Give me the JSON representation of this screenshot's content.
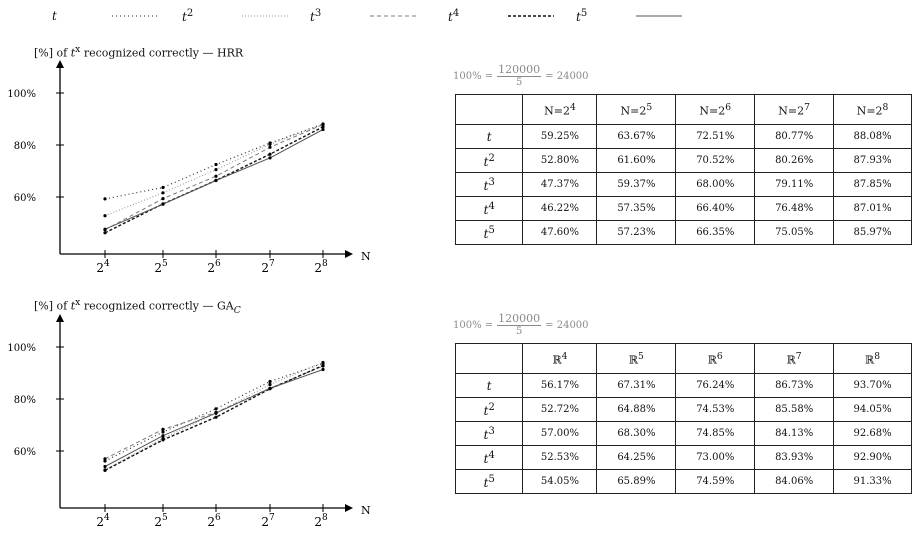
{
  "legend": [
    {
      "label": "t",
      "sup": "",
      "style": "dotted-sparse"
    },
    {
      "label": "t",
      "sup": "2",
      "style": "dotted-light"
    },
    {
      "label": "t",
      "sup": "3",
      "style": "dashed-light"
    },
    {
      "label": "t",
      "sup": "4",
      "style": "dashed-dark"
    },
    {
      "label": "t",
      "sup": "5",
      "style": "solid"
    }
  ],
  "colors": {
    "t1": "#222222",
    "t2": "#9a9a9a",
    "t3": "#7a7a7a",
    "t4": "#111111",
    "t5": "#555555",
    "caption_gray": "#8a8a8a"
  },
  "top": {
    "title_prefix": "[%] of ",
    "title_var": "t",
    "title_sup": "x",
    "title_suffix": " recognized correctly — HRR",
    "eq_left": "100% = ",
    "eq_num": "120000",
    "eq_den": "5",
    "eq_right": " = 24000",
    "table_corner": "",
    "table_headers": [
      {
        "base": "N=2",
        "sup": "4"
      },
      {
        "base": "N=2",
        "sup": "5"
      },
      {
        "base": "N=2",
        "sup": "6"
      },
      {
        "base": "N=2",
        "sup": "7"
      },
      {
        "base": "N=2",
        "sup": "8"
      }
    ],
    "table_rows": [
      {
        "var": "t",
        "sup": "",
        "cells": [
          "59.25%",
          "63.67%",
          "72.51%",
          "80.77%",
          "88.08%"
        ]
      },
      {
        "var": "t",
        "sup": "2",
        "cells": [
          "52.80%",
          "61.60%",
          "70.52%",
          "80.26%",
          "87.93%"
        ]
      },
      {
        "var": "t",
        "sup": "3",
        "cells": [
          "47.37%",
          "59.37%",
          "68.00%",
          "79.11%",
          "87.85%"
        ]
      },
      {
        "var": "t",
        "sup": "4",
        "cells": [
          "46.22%",
          "57.35%",
          "66.40%",
          "76.48%",
          "87.01%"
        ]
      },
      {
        "var": "t",
        "sup": "5",
        "cells": [
          "47.60%",
          "57.23%",
          "66.35%",
          "75.05%",
          "85.97%"
        ]
      }
    ]
  },
  "bottom": {
    "title_prefix": "[%] of ",
    "title_var": "t",
    "title_sup": "x",
    "title_suffix": " recognized correctly — GA",
    "title_sub": "C",
    "eq_left": "100% = ",
    "eq_num": "120000",
    "eq_den": "5",
    "eq_right": " = 24000",
    "table_corner": "",
    "table_headers": [
      {
        "base": "ℝ",
        "sup": "4"
      },
      {
        "base": "ℝ",
        "sup": "5"
      },
      {
        "base": "ℝ",
        "sup": "6"
      },
      {
        "base": "ℝ",
        "sup": "7"
      },
      {
        "base": "ℝ",
        "sup": "8"
      }
    ],
    "table_rows": [
      {
        "var": "t",
        "sup": "",
        "cells": [
          "56.17%",
          "67.31%",
          "76.24%",
          "86.73%",
          "93.70%"
        ]
      },
      {
        "var": "t",
        "sup": "2",
        "cells": [
          "52.72%",
          "64.88%",
          "74.53%",
          "85.58%",
          "94.05%"
        ]
      },
      {
        "var": "t",
        "sup": "3",
        "cells": [
          "57.00%",
          "68.30%",
          "74.85%",
          "84.13%",
          "92.68%"
        ]
      },
      {
        "var": "t",
        "sup": "4",
        "cells": [
          "52.53%",
          "64.25%",
          "73.00%",
          "83.93%",
          "92.90%"
        ]
      },
      {
        "var": "t",
        "sup": "5",
        "cells": [
          "54.05%",
          "65.89%",
          "74.59%",
          "84.06%",
          "91.33%"
        ]
      }
    ]
  },
  "chart_data": [
    {
      "type": "line",
      "title": "[%] of t^x recognized correctly — HRR",
      "x": [
        "2^4",
        "2^5",
        "2^6",
        "2^7",
        "2^8"
      ],
      "x_base": "2",
      "x_sups": [
        "4",
        "5",
        "6",
        "7",
        "8"
      ],
      "xlabel": "N",
      "y_ticks": [
        "60%",
        "80%",
        "100%"
      ],
      "ylim": [
        45,
        105
      ],
      "series": [
        {
          "name": "t",
          "values": [
            59.25,
            63.67,
            72.51,
            80.77,
            88.08
          ]
        },
        {
          "name": "t^2",
          "values": [
            52.8,
            61.6,
            70.52,
            80.26,
            87.93
          ]
        },
        {
          "name": "t^3",
          "values": [
            47.37,
            59.37,
            68.0,
            79.11,
            87.85
          ]
        },
        {
          "name": "t^4",
          "values": [
            46.22,
            57.35,
            66.4,
            76.48,
            87.01
          ]
        },
        {
          "name": "t^5",
          "values": [
            47.6,
            57.23,
            66.35,
            75.05,
            85.97
          ]
        }
      ]
    },
    {
      "type": "line",
      "title": "[%] of t^x recognized correctly — GA_C",
      "x": [
        "2^4",
        "2^5",
        "2^6",
        "2^7",
        "2^8"
      ],
      "x_base": "2",
      "x_sups": [
        "4",
        "5",
        "6",
        "7",
        "8"
      ],
      "xlabel": "N",
      "y_ticks": [
        "60%",
        "80%",
        "100%"
      ],
      "ylim": [
        45,
        105
      ],
      "series": [
        {
          "name": "t",
          "values": [
            56.17,
            67.31,
            76.24,
            86.73,
            93.7
          ]
        },
        {
          "name": "t^2",
          "values": [
            52.72,
            64.88,
            74.53,
            85.58,
            94.05
          ]
        },
        {
          "name": "t^3",
          "values": [
            57.0,
            68.3,
            74.85,
            84.13,
            92.68
          ]
        },
        {
          "name": "t^4",
          "values": [
            52.53,
            64.25,
            73.0,
            83.93,
            92.9
          ]
        },
        {
          "name": "t^5",
          "values": [
            54.05,
            65.89,
            74.59,
            84.06,
            91.33
          ]
        }
      ]
    }
  ]
}
